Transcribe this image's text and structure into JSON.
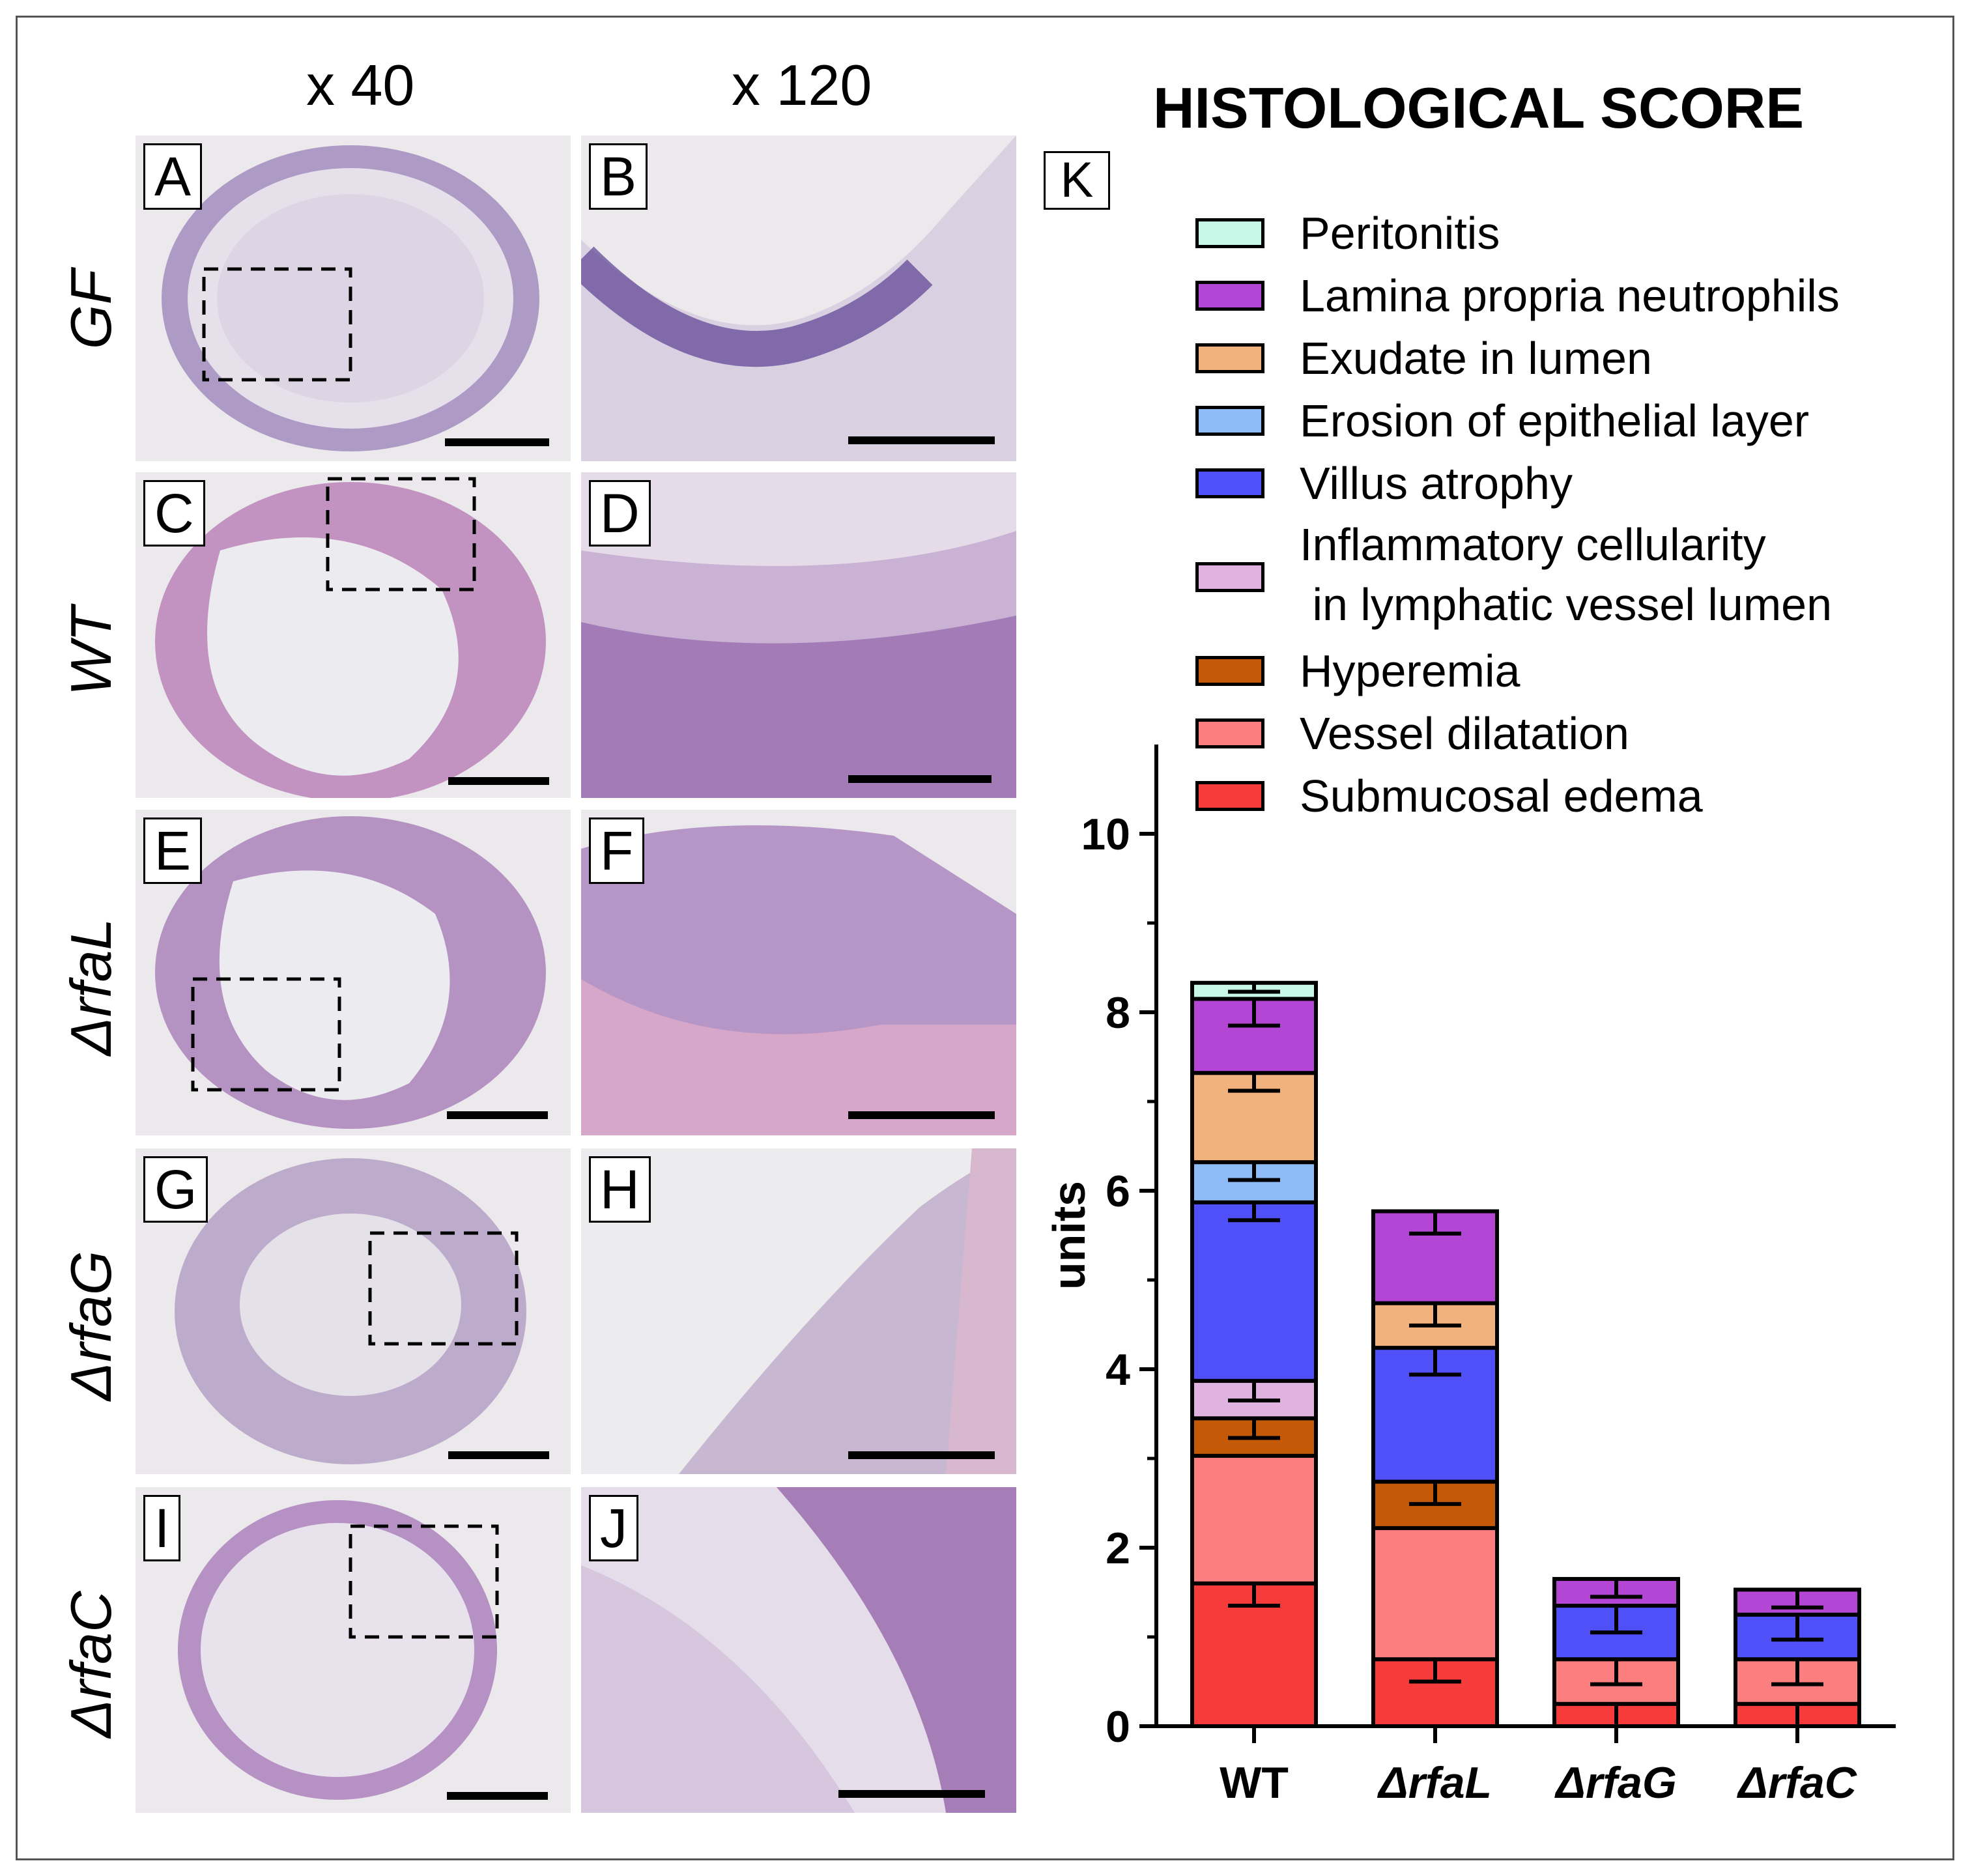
{
  "figure": {
    "col_headers": [
      "x 40",
      "x 120"
    ],
    "row_labels": [
      "GF",
      "WT",
      "ΔrfaL",
      "ΔrfaG",
      "ΔrfaC"
    ],
    "panel_labels": [
      "A",
      "B",
      "C",
      "D",
      "E",
      "F",
      "G",
      "H",
      "I",
      "J"
    ],
    "chart_panel_label": "K"
  },
  "chart_data": {
    "type": "bar",
    "stacked": true,
    "title": "HISTOLOGICAL SCORE",
    "xlabel": "",
    "ylabel": "units",
    "ylim": [
      0,
      11
    ],
    "yticks": [
      0,
      2,
      4,
      6,
      8,
      10
    ],
    "categories": [
      "WT",
      "ΔrfaL",
      "ΔrfaG",
      "ΔrfaC"
    ],
    "legend_position": "top-right",
    "series": [
      {
        "name": "Submucosal edema",
        "color": "#f73b3b",
        "values": [
          1.6,
          0.75,
          0.25,
          0.25
        ],
        "errors": [
          0.25,
          0.25,
          0.25,
          0.25
        ]
      },
      {
        "name": "Vessel dilatation",
        "color": "#fd7e7e",
        "values": [
          1.43,
          1.47,
          0.5,
          0.5
        ],
        "errors": [
          0.0,
          0.0,
          0.28,
          0.28
        ]
      },
      {
        "name": "Hyperemia",
        "color": "#c45a08",
        "values": [
          0.42,
          0.52,
          0.0,
          0.0
        ],
        "errors": [
          0.22,
          0.25,
          0.0,
          0.0
        ]
      },
      {
        "name": "Inflammatory cellularity\n in lymphatic vessel lumen",
        "color": "#dfb2e0",
        "values": [
          0.42,
          0.0,
          0.0,
          0.0
        ],
        "errors": [
          0.22,
          0.0,
          0.0,
          0.0
        ]
      },
      {
        "name": "Villus atrophy",
        "color": "#5050f8",
        "values": [
          2.0,
          1.5,
          0.6,
          0.5
        ],
        "errors": [
          0.2,
          0.3,
          0.3,
          0.28
        ]
      },
      {
        "name": "Erosion of epithelial layer",
        "color": "#8fbcf7",
        "values": [
          0.45,
          0.0,
          0.0,
          0.0
        ],
        "errors": [
          0.2,
          0.0,
          0.0,
          0.0
        ]
      },
      {
        "name": "Exudate in lumen",
        "color": "#f2b27d",
        "values": [
          1.0,
          0.5,
          0.0,
          0.0
        ],
        "errors": [
          0.2,
          0.25,
          0.0,
          0.0
        ]
      },
      {
        "name": "Lamina propria neutrophils",
        "color": "#b446d6",
        "values": [
          0.83,
          1.03,
          0.3,
          0.28
        ],
        "errors": [
          0.3,
          0.25,
          0.2,
          0.2
        ]
      },
      {
        "name": "Peritonitis",
        "color": "#c9f7e7",
        "values": [
          0.18,
          0.0,
          0.0,
          0.0
        ],
        "errors": [
          0.1,
          0.0,
          0.0,
          0.0
        ]
      }
    ]
  }
}
